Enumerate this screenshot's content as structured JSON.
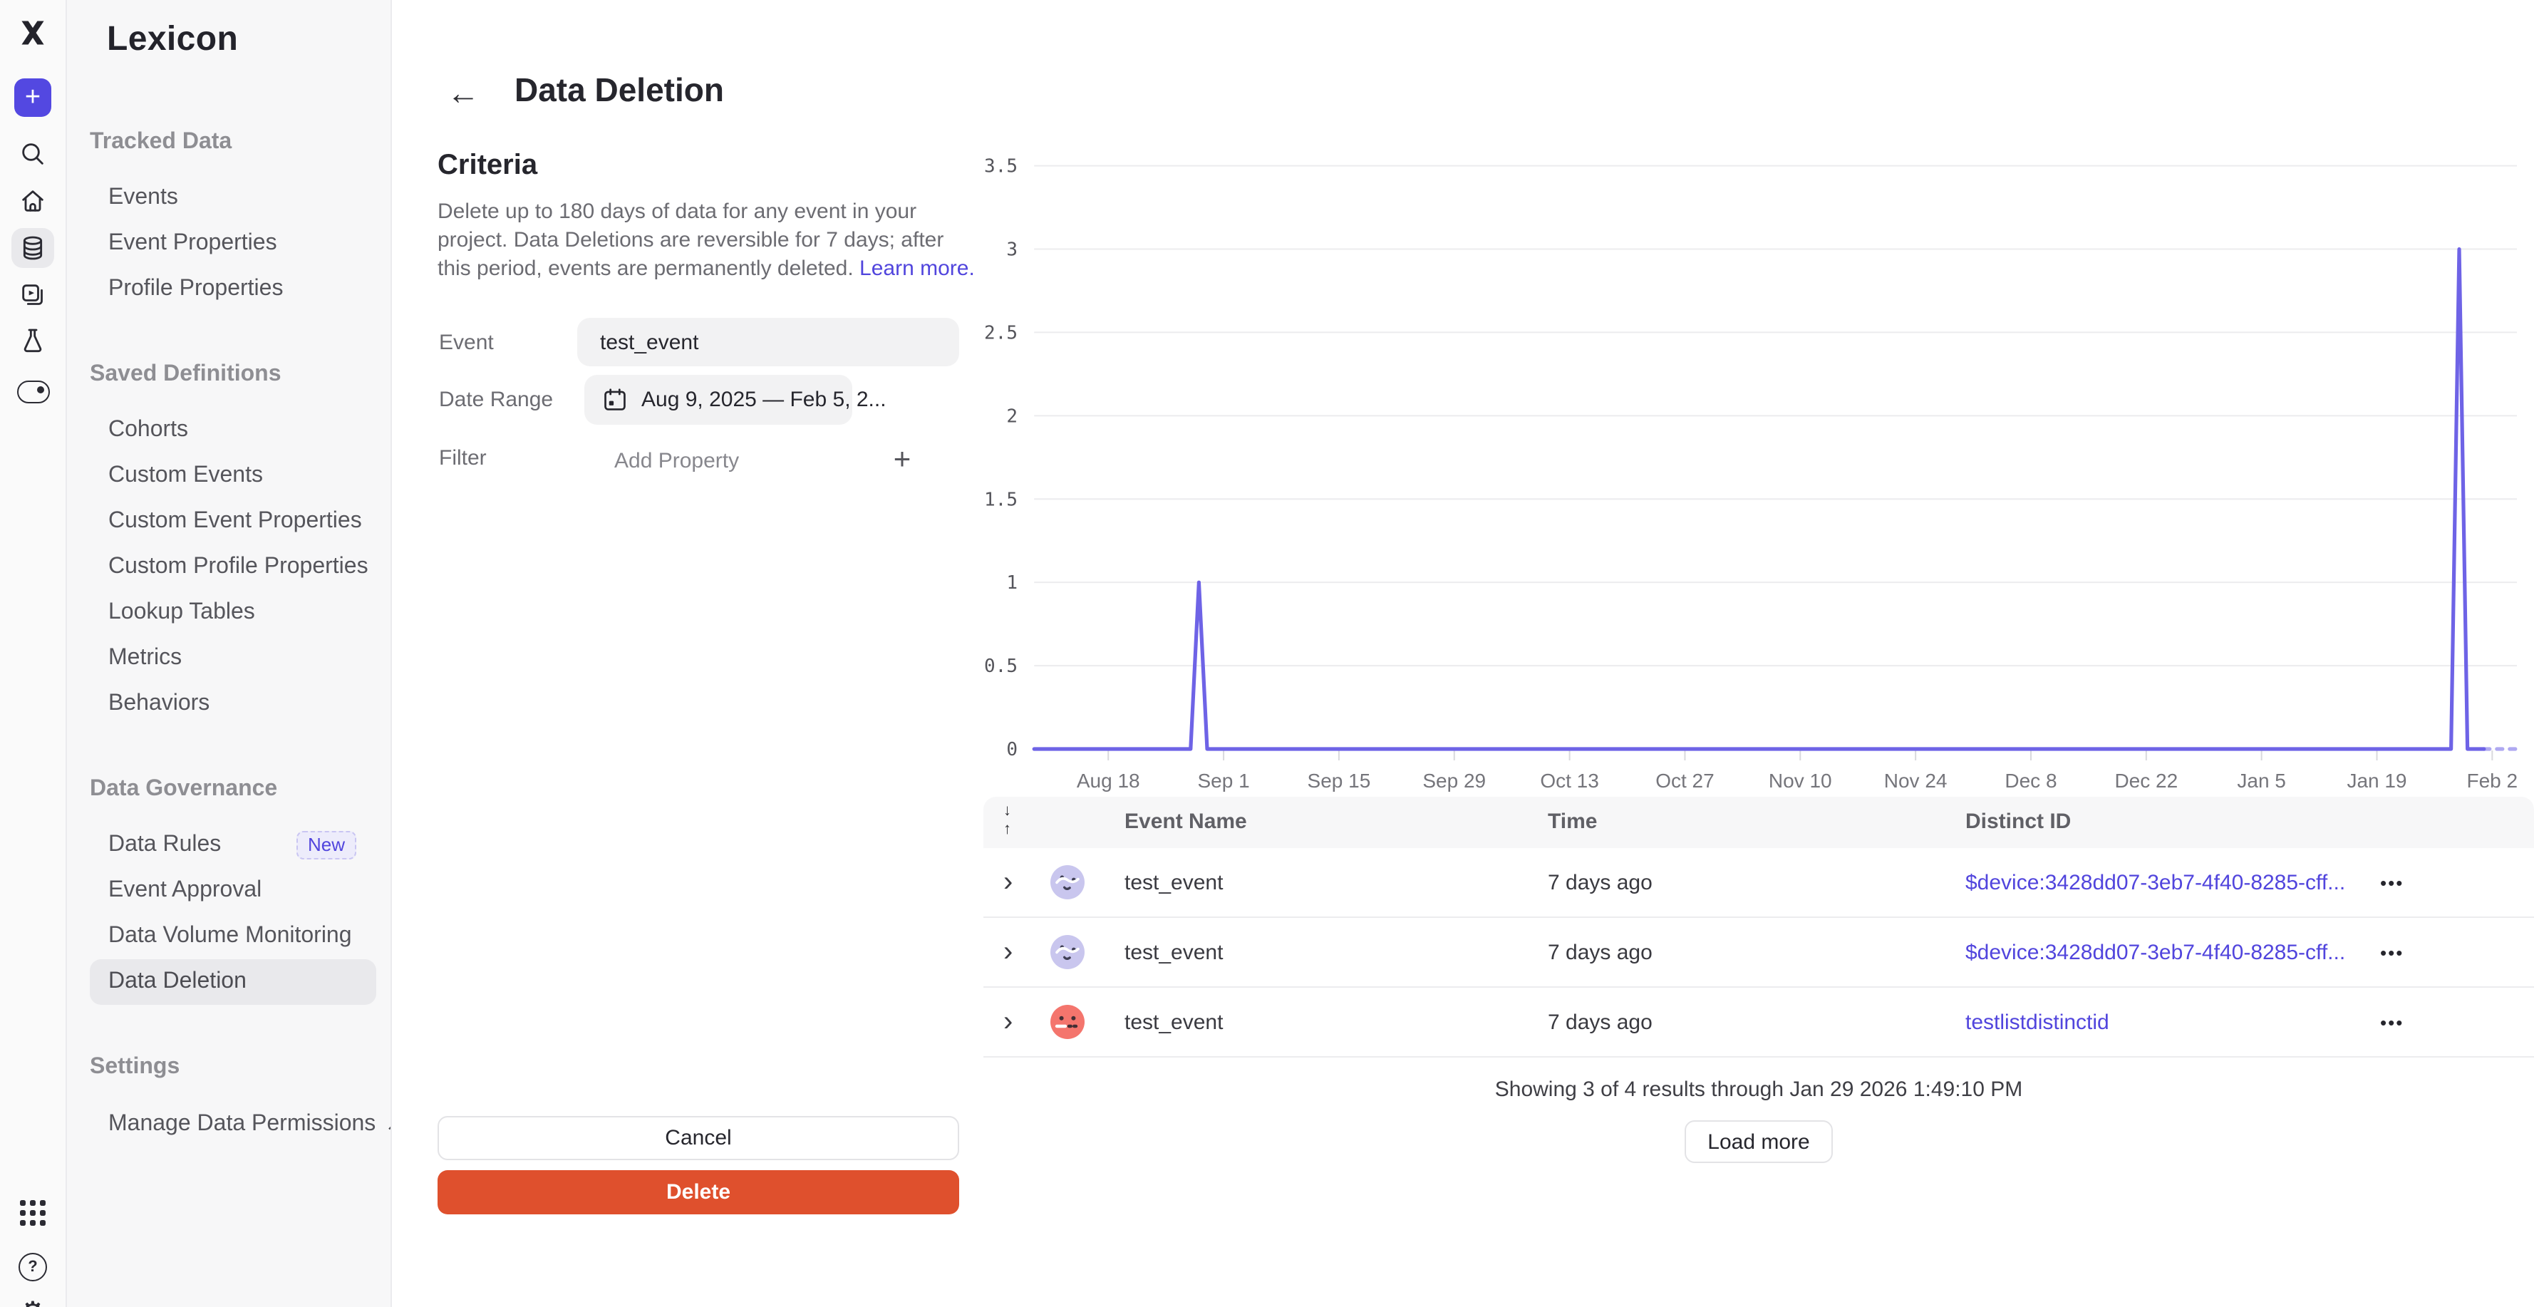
{
  "colors": {
    "accent_purple": "#5348e1",
    "chart_line": "#6e63e6",
    "link": "#5145dd",
    "delete_red": "#df502d",
    "badge_bg": "#edecfb",
    "selected_item_bg": "#e9e9ec"
  },
  "icons": {
    "back_arrow": "←",
    "sort_desc": "↓",
    "sort_asc": "↑",
    "add_plus": "+",
    "plus_create": "+",
    "external_link": "↗",
    "row_chevron": "›",
    "row_menu": "•••",
    "help": "?",
    "gear": "⚙"
  },
  "rail": {
    "icons": [
      "mixpanel-logo",
      "create-plus",
      "search",
      "home",
      "data-management",
      "boards",
      "experiments",
      "toggle-feature",
      "apps-grid",
      "help",
      "settings-gear"
    ]
  },
  "sidebar": {
    "title": "Lexicon",
    "sections": [
      {
        "label": "Tracked Data",
        "items": [
          {
            "label": "Events"
          },
          {
            "label": "Event Properties"
          },
          {
            "label": "Profile Properties"
          }
        ]
      },
      {
        "label": "Saved Definitions",
        "items": [
          {
            "label": "Cohorts"
          },
          {
            "label": "Custom Events"
          },
          {
            "label": "Custom Event Properties"
          },
          {
            "label": "Custom Profile Properties"
          },
          {
            "label": "Lookup Tables"
          },
          {
            "label": "Metrics"
          },
          {
            "label": "Behaviors"
          }
        ]
      },
      {
        "label": "Data Governance",
        "items": [
          {
            "label": "Data Rules",
            "badge": "New"
          },
          {
            "label": "Event Approval"
          },
          {
            "label": "Data Volume Monitoring"
          },
          {
            "label": "Data Deletion",
            "selected": true
          }
        ]
      },
      {
        "label": "Settings",
        "items": [
          {
            "label": "Manage Data Permissions",
            "external": true
          }
        ]
      }
    ]
  },
  "header": {
    "title": "Data Deletion"
  },
  "criteria": {
    "heading": "Criteria",
    "description": "Delete up to 180 days of data for any event in your project. Data Deletions are reversible for 7 days; after this period, events are permanently deleted.",
    "learn_more": "Learn more.",
    "event_label": "Event",
    "event_value": "test_event",
    "date_range_label": "Date Range",
    "date_range_value": "Aug 9, 2025 — Feb 5, 2...",
    "filter_label": "Filter",
    "filter_placeholder": "Add Property",
    "cancel_label": "Cancel",
    "delete_label": "Delete"
  },
  "chart_data": {
    "type": "line",
    "title": "",
    "xlabel": "",
    "ylabel": "",
    "x_start": "Aug 9, 2025",
    "x_end": "Feb 5, 2026",
    "total_days": 180,
    "x_tick_labels": [
      "Aug 18",
      "Sep 1",
      "Sep 15",
      "Sep 29",
      "Oct 13",
      "Oct 27",
      "Nov 10",
      "Nov 24",
      "Dec 8",
      "Dec 22",
      "Jan 5",
      "Jan 19",
      "Feb 2"
    ],
    "x_tick_day_offsets": [
      9,
      23,
      37,
      51,
      65,
      79,
      93,
      107,
      121,
      135,
      149,
      163,
      177
    ],
    "y_ticks": [
      0,
      0.5,
      1,
      1.5,
      2,
      2.5,
      3,
      3.5
    ],
    "ylim": [
      0,
      3.5
    ],
    "grid": "horizontal",
    "legend": "none",
    "series": [
      {
        "name": "test_event",
        "note": "daily count, 0 on all days except two spikes",
        "points": [
          [
            0,
            0
          ],
          [
            19,
            0
          ],
          [
            20,
            1
          ],
          [
            21,
            0
          ],
          [
            172,
            0
          ],
          [
            173,
            3
          ],
          [
            174,
            0
          ],
          [
            176,
            0
          ]
        ],
        "dashed_tail": [
          [
            176,
            0
          ],
          [
            180,
            0
          ]
        ],
        "spikes": [
          {
            "date": "Aug 29, 2025",
            "value": 1
          },
          {
            "date": "Jan 29, 2026",
            "value": 3
          }
        ]
      }
    ],
    "line_color": "#6e63e6"
  },
  "table": {
    "columns": [
      "Event Name",
      "Time",
      "Distinct ID"
    ],
    "rows": [
      {
        "event": "test_event",
        "time": "7 days ago",
        "distinct_id": "$device:3428dd07-3eb7-4f40-8285-cff...",
        "avatar": "lavender"
      },
      {
        "event": "test_event",
        "time": "7 days ago",
        "distinct_id": "$device:3428dd07-3eb7-4f40-8285-cff...",
        "avatar": "lavender"
      },
      {
        "event": "test_event",
        "time": "7 days ago",
        "distinct_id": "testlistdistinctid",
        "avatar": "red"
      }
    ],
    "footer": "Showing 3 of 4 results through Jan 29 2026 1:49:10 PM",
    "load_more_label": "Load more"
  }
}
